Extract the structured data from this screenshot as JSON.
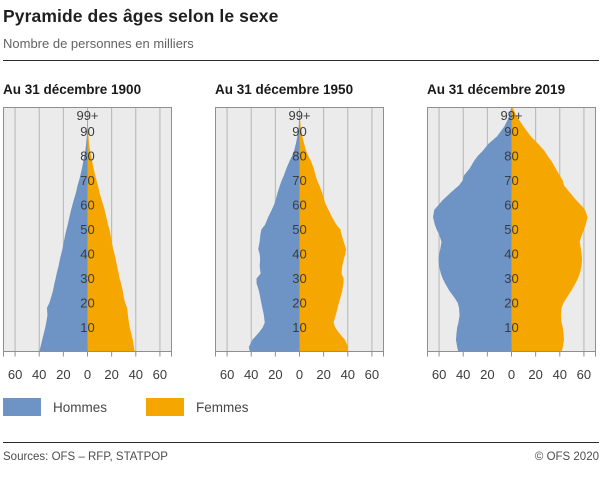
{
  "title": "Pyramide des âges selon le sexe",
  "subtitle": "Nombre de personnes en milliers",
  "legend": [
    {
      "label": "Hommes",
      "color": "#6e93c5"
    },
    {
      "label": "Femmes",
      "color": "#f5a600"
    }
  ],
  "footer": {
    "sources": "Sources: OFS – RFP, STATPOP",
    "copyright": "© OFS 2020"
  },
  "colors": {
    "hommes": "#6e93c5",
    "femmes": "#f5a600",
    "panel_bg": "#ebebeb",
    "gridline": "#b5b5b5",
    "panel_border": "#8f8f8f",
    "axis_text": "#3c3c3c"
  },
  "chart_data": [
    {
      "type": "area",
      "subtype": "population_pyramid",
      "title": "Au 31 décembre 1900",
      "x_axis": {
        "ticks": [
          -60,
          -40,
          -20,
          0,
          20,
          40,
          60
        ],
        "labels": [
          "60",
          "40",
          "20",
          "0",
          "20",
          "40",
          "60"
        ],
        "lim": [
          -70,
          70
        ]
      },
      "age_axis": {
        "lim": [
          0,
          100
        ],
        "labels": [
          {
            "text": "10",
            "pos": 10
          },
          {
            "text": "20",
            "pos": 20
          },
          {
            "text": "30",
            "pos": 30
          },
          {
            "text": "40",
            "pos": 40
          },
          {
            "text": "50",
            "pos": 50
          },
          {
            "text": "60",
            "pos": 60
          },
          {
            "text": "70",
            "pos": 70
          },
          {
            "text": "80",
            "pos": 80
          },
          {
            "text": "90",
            "pos": 90
          },
          {
            "text": "99+",
            "pos": 96.5
          }
        ]
      },
      "ages": [
        0,
        2,
        5,
        8,
        10,
        12,
        15,
        18,
        20,
        22,
        25,
        28,
        30,
        32,
        35,
        38,
        40,
        42,
        45,
        48,
        50,
        52,
        55,
        58,
        60,
        62,
        65,
        68,
        70,
        72,
        75,
        78,
        80,
        82,
        85,
        88,
        90,
        92,
        95,
        97,
        100
      ],
      "series": [
        {
          "name": "Hommes",
          "values": [
            40,
            39,
            37.5,
            36,
            35,
            34.2,
            33.2,
            33.6,
            31.6,
            30.4,
            28.6,
            27.4,
            26.4,
            25.6,
            24,
            22.8,
            21.8,
            20.8,
            19.6,
            18.4,
            17.4,
            16.4,
            15,
            13.6,
            12.5,
            11.4,
            9.6,
            8.2,
            7,
            6,
            4.6,
            3.4,
            2.6,
            1.9,
            1.1,
            0.6,
            0.4,
            0.25,
            0.1,
            0.05,
            0
          ]
        },
        {
          "name": "Femmes",
          "values": [
            39.2,
            38.5,
            37.5,
            36,
            35,
            34.3,
            33.5,
            32.8,
            31.2,
            30.2,
            29.2,
            27.8,
            26.6,
            25.8,
            24.5,
            23.3,
            22.4,
            21.3,
            20.1,
            19,
            18.2,
            17,
            15.6,
            14.2,
            13,
            11.8,
            10,
            8.6,
            7.5,
            6.4,
            5,
            3.8,
            3,
            2.2,
            1.3,
            0.8,
            0.5,
            0.3,
            0.15,
            0.08,
            0
          ]
        }
      ]
    },
    {
      "type": "area",
      "subtype": "population_pyramid",
      "title": "Au 31 décembre 1950",
      "x_axis": {
        "ticks": [
          -60,
          -40,
          -20,
          0,
          20,
          40,
          60
        ],
        "labels": [
          "60",
          "40",
          "20",
          "0",
          "20",
          "40",
          "60"
        ],
        "lim": [
          -70,
          70
        ]
      },
      "age_axis": {
        "lim": [
          0,
          100
        ],
        "labels": [
          {
            "text": "10",
            "pos": 10
          },
          {
            "text": "20",
            "pos": 20
          },
          {
            "text": "30",
            "pos": 30
          },
          {
            "text": "40",
            "pos": 40
          },
          {
            "text": "50",
            "pos": 50
          },
          {
            "text": "60",
            "pos": 60
          },
          {
            "text": "70",
            "pos": 70
          },
          {
            "text": "80",
            "pos": 80
          },
          {
            "text": "90",
            "pos": 90
          },
          {
            "text": "99+",
            "pos": 96.5
          }
        ]
      },
      "ages": [
        0,
        2,
        5,
        8,
        10,
        12,
        15,
        18,
        20,
        22,
        25,
        28,
        30,
        32,
        35,
        38,
        40,
        42,
        45,
        48,
        50,
        52,
        55,
        58,
        60,
        62,
        65,
        68,
        70,
        72,
        75,
        78,
        80,
        82,
        85,
        88,
        90,
        92,
        95,
        97,
        100
      ],
      "series": [
        {
          "name": "Hommes",
          "values": [
            41,
            42,
            39,
            33.5,
            30.5,
            28.8,
            29.5,
            30.8,
            31.6,
            32.4,
            33.6,
            35.6,
            35.6,
            32.2,
            33,
            32.6,
            33,
            34.2,
            33,
            32.4,
            31.6,
            28.5,
            26,
            23,
            21.2,
            19.8,
            18.2,
            16.2,
            14.8,
            13,
            10.8,
            8.2,
            6.2,
            4.6,
            3,
            1.8,
            1.2,
            0.7,
            0.3,
            0.15,
            0
          ]
        },
        {
          "name": "Femmes",
          "values": [
            39.5,
            40.3,
            37.6,
            32.4,
            29.6,
            28.2,
            30,
            31.6,
            32.6,
            33.8,
            35.4,
            36.4,
            36.6,
            34.8,
            35.4,
            36.8,
            38,
            38.6,
            36.6,
            34.8,
            34,
            30.5,
            27,
            24,
            22,
            20.5,
            18.8,
            16.4,
            14.6,
            13.4,
            11.8,
            9.4,
            7.4,
            5.6,
            3.8,
            2.4,
            1.6,
            1,
            0.45,
            0.2,
            0
          ]
        }
      ]
    },
    {
      "type": "area",
      "subtype": "population_pyramid",
      "title": "Au 31 décembre 2019",
      "x_axis": {
        "ticks": [
          -60,
          -40,
          -20,
          0,
          20,
          40,
          60
        ],
        "labels": [
          "60",
          "40",
          "20",
          "0",
          "20",
          "40",
          "60"
        ],
        "lim": [
          -70,
          70
        ]
      },
      "age_axis": {
        "lim": [
          0,
          100
        ],
        "labels": [
          {
            "text": "10",
            "pos": 10
          },
          {
            "text": "20",
            "pos": 20
          },
          {
            "text": "30",
            "pos": 30
          },
          {
            "text": "40",
            "pos": 40
          },
          {
            "text": "50",
            "pos": 50
          },
          {
            "text": "60",
            "pos": 60
          },
          {
            "text": "70",
            "pos": 70
          },
          {
            "text": "80",
            "pos": 80
          },
          {
            "text": "90",
            "pos": 90
          },
          {
            "text": "99+",
            "pos": 96.5
          }
        ]
      },
      "ages": [
        0,
        2,
        5,
        8,
        10,
        12,
        15,
        18,
        20,
        22,
        25,
        28,
        30,
        32,
        35,
        38,
        40,
        42,
        45,
        48,
        50,
        52,
        55,
        58,
        60,
        62,
        65,
        68,
        70,
        72,
        75,
        78,
        80,
        82,
        85,
        88,
        90,
        92,
        95,
        97,
        100
      ],
      "series": [
        {
          "name": "Hommes",
          "values": [
            44,
            45,
            46,
            45.5,
            45,
            44,
            43,
            43.5,
            44.5,
            47,
            51.5,
            55,
            57,
            58.5,
            60,
            60.5,
            60,
            59,
            58,
            60,
            62,
            63.5,
            65,
            64,
            60.5,
            57,
            50.5,
            43.5,
            40.5,
            39.5,
            34.5,
            31,
            28,
            24,
            19,
            12,
            9,
            6,
            3,
            1.5,
            0.2
          ]
        },
        {
          "name": "Femmes",
          "values": [
            41.5,
            42.5,
            43.5,
            43,
            42.5,
            41.5,
            41,
            41.5,
            43,
            45.5,
            49.5,
            53,
            55,
            56.5,
            58,
            58.5,
            58,
            57.5,
            56.5,
            58.5,
            60,
            61.5,
            63,
            61,
            57.5,
            53.5,
            48.5,
            43.5,
            42.5,
            40,
            36.5,
            33,
            30,
            27.5,
            22,
            16,
            13,
            10,
            6,
            3.5,
            0.8
          ]
        }
      ]
    }
  ]
}
